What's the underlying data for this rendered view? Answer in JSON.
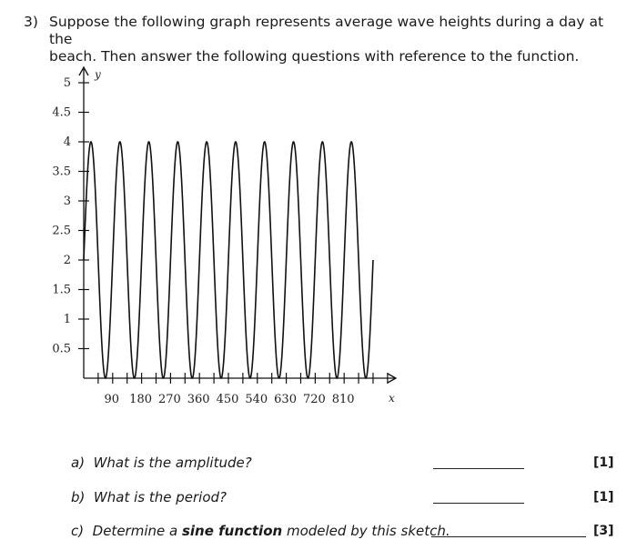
{
  "question": {
    "number": "3)",
    "line1": "Suppose the following graph represents average wave heights during a day at the",
    "line2": "beach. Then answer the following questions with reference to the function."
  },
  "chart_data": {
    "type": "line",
    "title": "",
    "xlabel": "x",
    "ylabel": "y",
    "xlim": [
      0,
      900
    ],
    "ylim": [
      0,
      5
    ],
    "x_tick_labels": [
      "90",
      "180",
      "270",
      "360",
      "450",
      "540",
      "630",
      "720",
      "810"
    ],
    "y_tick_labels": [
      "0.5",
      "1",
      "1.5",
      "2",
      "2.5",
      "3",
      "3.5",
      "4",
      "4.5",
      "5"
    ],
    "series": [
      {
        "function": "y = 2*sin(4x) + 2",
        "amplitude": 2,
        "midline": 2,
        "period": 90,
        "y_min": 0,
        "y_max": 4,
        "x_range": [
          0,
          900
        ]
      }
    ]
  },
  "subquestions": [
    {
      "id": "a",
      "prefix": "a)",
      "text": "What is the amplitude?",
      "marks": "[1]"
    },
    {
      "id": "b",
      "prefix": "b)",
      "text": "What is the period?",
      "marks": "[1]"
    },
    {
      "id": "c",
      "prefix": "c)",
      "text_before": "Determine a",
      "bold": "sine function",
      "text_after": "modeled by this sketch.",
      "marks": "[3]"
    }
  ]
}
